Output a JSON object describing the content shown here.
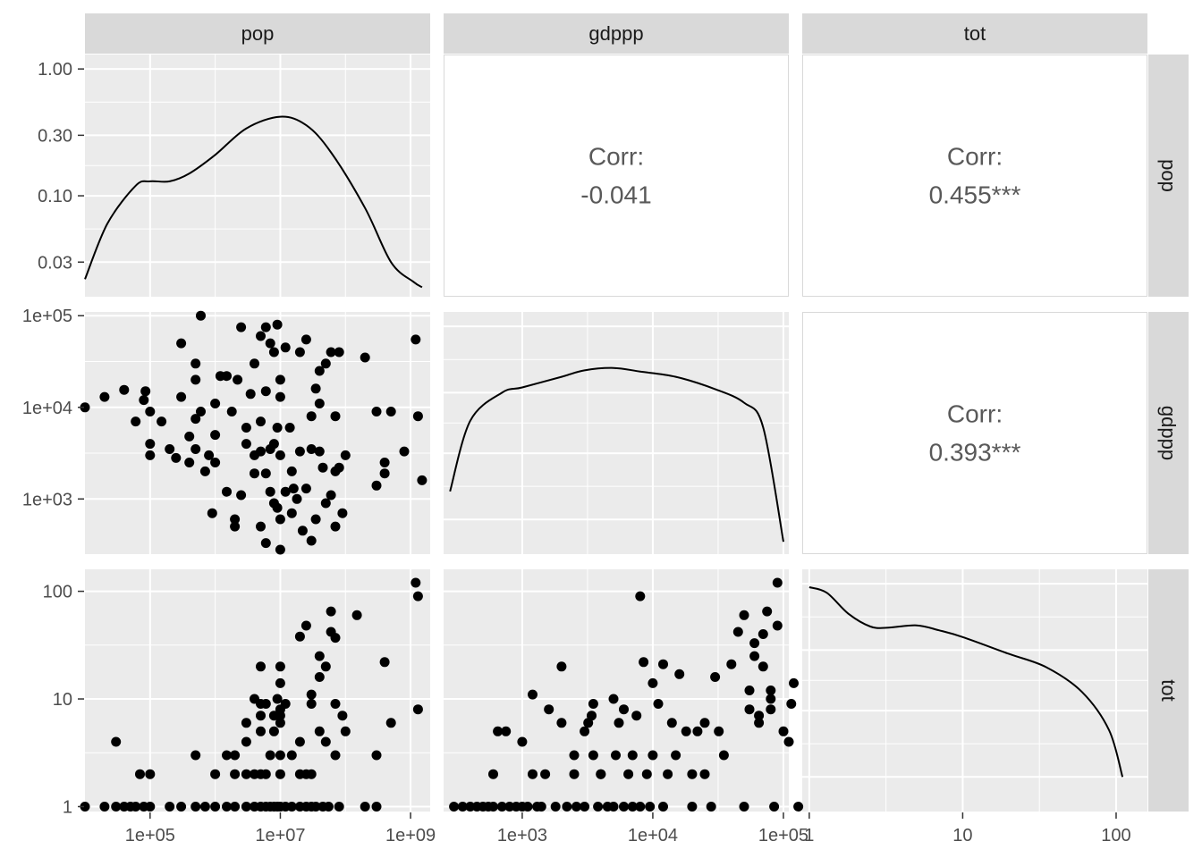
{
  "chart_data": {
    "type": "scatter",
    "variables": [
      "pop",
      "gdppp",
      "tot"
    ],
    "log_scale": true,
    "grid": true,
    "colors": {
      "panel": "#ebebeb",
      "strip": "#d9d9d9",
      "grid_major": "#ffffff",
      "points": "#000000",
      "text": "#4d4d4d"
    },
    "axes": {
      "pop": {
        "lim": [
          10000,
          2000000000
        ],
        "ticks": [
          100000,
          10000000,
          1000000000
        ],
        "tick_labels": [
          "1e+05",
          "1e+07",
          "1e+09"
        ]
      },
      "gdppp": {
        "lim": [
          250,
          110000
        ],
        "ticks": [
          1000,
          10000,
          100000
        ],
        "tick_labels": [
          "1e+03",
          "1e+04",
          "1e+05"
        ]
      },
      "tot": {
        "lim": [
          0.9,
          160
        ],
        "ticks": [
          1,
          10,
          100
        ],
        "tick_labels": [
          "1",
          "10",
          "100"
        ]
      }
    },
    "density_axis": {
      "lim": [
        0.016,
        1.3
      ],
      "ticks": [
        0.03,
        0.1,
        0.3,
        1.0
      ],
      "tick_labels": [
        "0.03",
        "0.10",
        "0.30",
        "1.00"
      ]
    },
    "correlations": [
      {
        "row": "pop",
        "col": "gdppp",
        "label": "Corr:",
        "value": "-0.041"
      },
      {
        "row": "pop",
        "col": "tot",
        "label": "Corr:",
        "value": "0.455***"
      },
      {
        "row": "gdppp",
        "col": "tot",
        "label": "Corr:",
        "value": "0.393***"
      }
    ],
    "densities": {
      "pop": {
        "x": [
          10000,
          22000,
          60000,
          100000,
          200000,
          400000,
          1000000,
          3000000,
          10000000,
          25000000,
          60000000,
          200000000,
          500000000,
          1100000000,
          1500000000
        ],
        "y": [
          0.022,
          0.06,
          0.12,
          0.13,
          0.13,
          0.15,
          0.21,
          0.34,
          0.42,
          0.36,
          0.22,
          0.08,
          0.03,
          0.021,
          0.019
        ]
      },
      "gdppp": {
        "x": [
          280,
          400,
          700,
          1000,
          2000,
          3000,
          5000,
          8000,
          15000,
          30000,
          50000,
          70000,
          100000
        ],
        "y": [
          0.05,
          0.18,
          0.3,
          0.33,
          0.4,
          0.45,
          0.47,
          0.44,
          0.4,
          0.32,
          0.25,
          0.16,
          0.02
        ]
      },
      "tot": {
        "x": [
          1,
          1.3,
          1.8,
          2.5,
          3.2,
          5,
          7,
          10,
          20,
          35,
          60,
          90,
          110
        ],
        "y": [
          0.94,
          0.85,
          0.58,
          0.46,
          0.45,
          0.47,
          0.43,
          0.38,
          0.28,
          0.22,
          0.14,
          0.07,
          0.03
        ]
      }
    },
    "points": {
      "pop_gdppp": [
        [
          10000,
          10000
        ],
        [
          20000,
          13000
        ],
        [
          40000,
          15500
        ],
        [
          60000,
          7000
        ],
        [
          80000,
          12000
        ],
        [
          85000,
          15000
        ],
        [
          100000,
          9000
        ],
        [
          100000,
          4000
        ],
        [
          100000,
          3000
        ],
        [
          150000,
          7000
        ],
        [
          200000,
          3500
        ],
        [
          250000,
          2800
        ],
        [
          300000,
          50000
        ],
        [
          300000,
          13000
        ],
        [
          400000,
          4800
        ],
        [
          400000,
          2500
        ],
        [
          500000,
          30000
        ],
        [
          500000,
          20000
        ],
        [
          500000,
          7500
        ],
        [
          500000,
          3500
        ],
        [
          600000,
          100000
        ],
        [
          600000,
          9000
        ],
        [
          700000,
          2000
        ],
        [
          800000,
          3000
        ],
        [
          900000,
          700
        ],
        [
          1000000,
          11000
        ],
        [
          1000000,
          5000
        ],
        [
          1000000,
          2500
        ],
        [
          1200000,
          22000
        ],
        [
          1500000,
          22000
        ],
        [
          1500000,
          1200
        ],
        [
          1800000,
          9000
        ],
        [
          2000000,
          600
        ],
        [
          2000000,
          500
        ],
        [
          2200000,
          20000
        ],
        [
          2500000,
          75000
        ],
        [
          2500000,
          1100
        ],
        [
          3000000,
          6000
        ],
        [
          3000000,
          4000
        ],
        [
          3500000,
          14000
        ],
        [
          4000000,
          30000
        ],
        [
          4000000,
          3000
        ],
        [
          4000000,
          1900
        ],
        [
          5000000,
          60000
        ],
        [
          5000000,
          7000
        ],
        [
          5000000,
          3300
        ],
        [
          5000000,
          500
        ],
        [
          6000000,
          75000
        ],
        [
          6000000,
          15000
        ],
        [
          6000000,
          1900
        ],
        [
          6000000,
          330
        ],
        [
          7000000,
          50000
        ],
        [
          7000000,
          3500
        ],
        [
          7000000,
          1200
        ],
        [
          8000000,
          40000
        ],
        [
          8000000,
          4000
        ],
        [
          8000000,
          900
        ],
        [
          9000000,
          80000
        ],
        [
          9000000,
          6000
        ],
        [
          9000000,
          800
        ],
        [
          10000000,
          20000
        ],
        [
          10000000,
          13000
        ],
        [
          10000000,
          3000
        ],
        [
          10000000,
          600
        ],
        [
          10000000,
          280
        ],
        [
          12000000,
          45000
        ],
        [
          12000000,
          1200
        ],
        [
          14000000,
          6000
        ],
        [
          15000000,
          2000
        ],
        [
          15000000,
          700
        ],
        [
          16000000,
          1300
        ],
        [
          18000000,
          1000
        ],
        [
          20000000,
          40000
        ],
        [
          20000000,
          3300
        ],
        [
          22000000,
          450
        ],
        [
          25000000,
          55000
        ],
        [
          25000000,
          1300
        ],
        [
          30000000,
          8000
        ],
        [
          30000000,
          3500
        ],
        [
          30000000,
          350
        ],
        [
          35000000,
          16000
        ],
        [
          35000000,
          600
        ],
        [
          40000000,
          25000
        ],
        [
          40000000,
          11000
        ],
        [
          40000000,
          3300
        ],
        [
          45000000,
          2200
        ],
        [
          50000000,
          30000
        ],
        [
          50000000,
          900
        ],
        [
          60000000,
          40000
        ],
        [
          60000000,
          1100
        ],
        [
          70000000,
          8000
        ],
        [
          70000000,
          2000
        ],
        [
          70000000,
          500
        ],
        [
          80000000,
          40000
        ],
        [
          80000000,
          2200
        ],
        [
          90000000,
          700
        ],
        [
          100000000,
          3000
        ],
        [
          200000000,
          35000
        ],
        [
          300000000,
          9000
        ],
        [
          300000000,
          1400
        ],
        [
          400000000,
          1900
        ],
        [
          400000000,
          2500
        ],
        [
          500000000,
          9000
        ],
        [
          800000000,
          3300
        ],
        [
          1200000000,
          55000
        ],
        [
          1300000000,
          8000
        ],
        [
          1500000000,
          1600
        ]
      ],
      "pop_tot": [
        [
          10000,
          1
        ],
        [
          20000,
          1
        ],
        [
          30000,
          1
        ],
        [
          30000,
          4
        ],
        [
          40000,
          1
        ],
        [
          50000,
          1
        ],
        [
          60000,
          1
        ],
        [
          70000,
          2
        ],
        [
          80000,
          1
        ],
        [
          100000,
          1
        ],
        [
          100000,
          2
        ],
        [
          200000,
          1
        ],
        [
          300000,
          1
        ],
        [
          500000,
          1
        ],
        [
          500000,
          3
        ],
        [
          700000,
          1
        ],
        [
          1000000,
          1
        ],
        [
          1000000,
          2
        ],
        [
          1500000,
          1
        ],
        [
          1500000,
          3
        ],
        [
          2000000,
          1
        ],
        [
          2000000,
          2
        ],
        [
          2000000,
          3
        ],
        [
          3000000,
          1
        ],
        [
          3000000,
          2
        ],
        [
          3000000,
          4
        ],
        [
          3000000,
          6
        ],
        [
          4000000,
          1
        ],
        [
          4000000,
          2
        ],
        [
          4000000,
          10
        ],
        [
          5000000,
          1
        ],
        [
          5000000,
          2
        ],
        [
          5000000,
          5
        ],
        [
          5000000,
          7
        ],
        [
          5000000,
          9
        ],
        [
          5000000,
          20
        ],
        [
          6000000,
          1
        ],
        [
          6000000,
          2
        ],
        [
          6000000,
          9
        ],
        [
          7000000,
          1
        ],
        [
          7000000,
          3
        ],
        [
          8000000,
          1
        ],
        [
          8000000,
          5
        ],
        [
          8000000,
          7
        ],
        [
          9000000,
          1
        ],
        [
          9000000,
          10
        ],
        [
          10000000,
          1
        ],
        [
          10000000,
          2
        ],
        [
          10000000,
          3
        ],
        [
          10000000,
          6
        ],
        [
          10000000,
          7
        ],
        [
          10000000,
          8
        ],
        [
          10000000,
          14
        ],
        [
          10000000,
          20
        ],
        [
          12000000,
          1
        ],
        [
          12000000,
          9
        ],
        [
          15000000,
          1
        ],
        [
          15000000,
          3
        ],
        [
          20000000,
          1
        ],
        [
          20000000,
          2
        ],
        [
          20000000,
          4
        ],
        [
          20000000,
          38
        ],
        [
          25000000,
          1
        ],
        [
          25000000,
          2
        ],
        [
          25000000,
          48
        ],
        [
          30000000,
          1
        ],
        [
          30000000,
          2
        ],
        [
          30000000,
          9
        ],
        [
          30000000,
          11
        ],
        [
          35000000,
          1
        ],
        [
          40000000,
          5
        ],
        [
          40000000,
          16
        ],
        [
          40000000,
          25
        ],
        [
          45000000,
          1
        ],
        [
          50000000,
          4
        ],
        [
          50000000,
          20
        ],
        [
          55000000,
          1
        ],
        [
          60000000,
          65
        ],
        [
          60000000,
          42
        ],
        [
          70000000,
          3
        ],
        [
          70000000,
          37
        ],
        [
          70000000,
          9
        ],
        [
          80000000,
          1
        ],
        [
          90000000,
          7
        ],
        [
          100000000,
          5
        ],
        [
          150000000,
          60
        ],
        [
          200000000,
          1
        ],
        [
          300000000,
          3
        ],
        [
          300000000,
          1
        ],
        [
          400000000,
          22
        ],
        [
          500000000,
          6
        ],
        [
          1200000000,
          120
        ],
        [
          1300000000,
          90
        ],
        [
          1300000000,
          8
        ]
      ],
      "gdppp_tot": [
        [
          300,
          1
        ],
        [
          350,
          1
        ],
        [
          400,
          1
        ],
        [
          450,
          1
        ],
        [
          500,
          1
        ],
        [
          550,
          1
        ],
        [
          600,
          2
        ],
        [
          600,
          1
        ],
        [
          650,
          5
        ],
        [
          700,
          1
        ],
        [
          750,
          5
        ],
        [
          800,
          1
        ],
        [
          900,
          1
        ],
        [
          1000,
          1
        ],
        [
          1000,
          4
        ],
        [
          1100,
          1
        ],
        [
          1200,
          2
        ],
        [
          1200,
          11
        ],
        [
          1300,
          1
        ],
        [
          1400,
          1
        ],
        [
          1500,
          2
        ],
        [
          1600,
          8
        ],
        [
          1800,
          1
        ],
        [
          2000,
          6
        ],
        [
          2000,
          20
        ],
        [
          2200,
          1
        ],
        [
          2500,
          3
        ],
        [
          2500,
          2
        ],
        [
          2600,
          1
        ],
        [
          3000,
          5
        ],
        [
          3000,
          1
        ],
        [
          3200,
          6
        ],
        [
          3400,
          7
        ],
        [
          3500,
          3
        ],
        [
          3500,
          9
        ],
        [
          3800,
          1
        ],
        [
          4000,
          2
        ],
        [
          4000,
          2
        ],
        [
          4500,
          1
        ],
        [
          5000,
          1
        ],
        [
          5000,
          10
        ],
        [
          5200,
          3
        ],
        [
          5500,
          6
        ],
        [
          6000,
          8
        ],
        [
          6000,
          1
        ],
        [
          6500,
          2
        ],
        [
          7000,
          1
        ],
        [
          7000,
          3
        ],
        [
          7500,
          7
        ],
        [
          8000,
          90
        ],
        [
          8000,
          1
        ],
        [
          8500,
          22
        ],
        [
          9000,
          2
        ],
        [
          9500,
          1
        ],
        [
          10000,
          14
        ],
        [
          10000,
          3
        ],
        [
          11000,
          9
        ],
        [
          12000,
          21
        ],
        [
          12000,
          1
        ],
        [
          13000,
          2
        ],
        [
          14000,
          6
        ],
        [
          15000,
          3
        ],
        [
          16000,
          17
        ],
        [
          18000,
          5
        ],
        [
          20000,
          1
        ],
        [
          20000,
          2
        ],
        [
          22000,
          5
        ],
        [
          25000,
          6
        ],
        [
          25000,
          2
        ],
        [
          28000,
          1
        ],
        [
          30000,
          16
        ],
        [
          32000,
          5
        ],
        [
          35000,
          3
        ],
        [
          40000,
          21
        ],
        [
          45000,
          42
        ],
        [
          50000,
          60
        ],
        [
          50000,
          1
        ],
        [
          55000,
          8
        ],
        [
          55000,
          12
        ],
        [
          60000,
          25
        ],
        [
          60000,
          33
        ],
        [
          65000,
          7
        ],
        [
          65000,
          6
        ],
        [
          70000,
          20
        ],
        [
          70000,
          40
        ],
        [
          75000,
          65
        ],
        [
          80000,
          10
        ],
        [
          80000,
          12
        ],
        [
          80000,
          8
        ],
        [
          85000,
          1
        ],
        [
          90000,
          48
        ],
        [
          90000,
          120
        ],
        [
          100000,
          5
        ],
        [
          110000,
          4
        ],
        [
          115000,
          9
        ],
        [
          120000,
          14
        ],
        [
          130000,
          1
        ]
      ]
    }
  }
}
